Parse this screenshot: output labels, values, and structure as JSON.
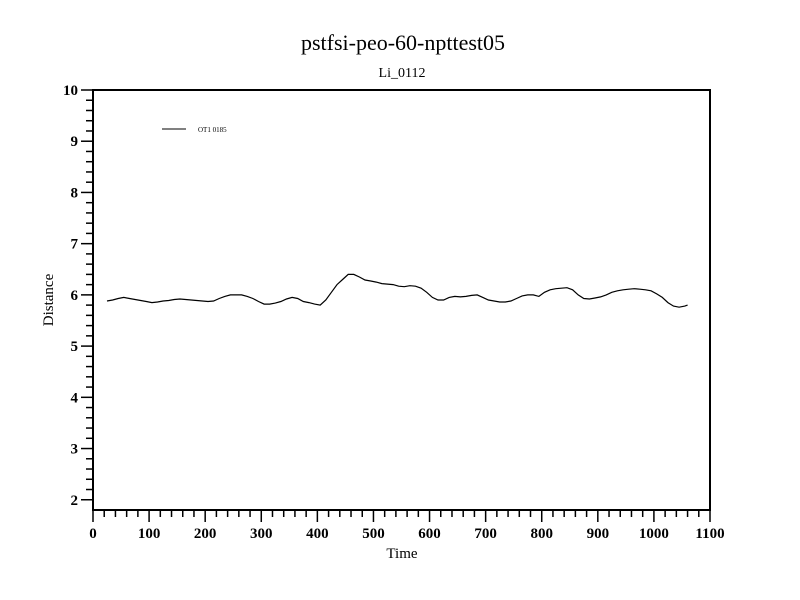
{
  "chart_data": {
    "type": "line",
    "title": "pstfsi-peo-60-npttest05",
    "subtitle": "Li_0112",
    "xlabel": "Time",
    "ylabel": "Distance",
    "xlim": [
      0,
      1100
    ],
    "ylim": [
      1.8,
      10
    ],
    "x_ticks": [
      "0",
      "100",
      "200",
      "300",
      "400",
      "500",
      "600",
      "700",
      "800",
      "900",
      "1000",
      "1100"
    ],
    "y_ticks": [
      "2",
      "3",
      "4",
      "5",
      "6",
      "7",
      "8",
      "9",
      "10"
    ],
    "grid": false,
    "legend_position": "top-left",
    "line_color": "#000000",
    "series": [
      {
        "name": "OT1 0185",
        "x": [
          25,
          35,
          45,
          55,
          65,
          75,
          85,
          95,
          105,
          115,
          125,
          135,
          145,
          155,
          165,
          175,
          185,
          195,
          205,
          215,
          225,
          235,
          245,
          255,
          265,
          275,
          285,
          295,
          305,
          315,
          325,
          335,
          345,
          355,
          365,
          375,
          385,
          395,
          405,
          415,
          425,
          435,
          445,
          455,
          465,
          475,
          485,
          495,
          505,
          515,
          525,
          535,
          545,
          555,
          565,
          575,
          585,
          595,
          605,
          615,
          625,
          635,
          645,
          655,
          665,
          675,
          685,
          695,
          705,
          715,
          725,
          735,
          745,
          755,
          765,
          775,
          785,
          795,
          805,
          815,
          825,
          835,
          845,
          855,
          865,
          875,
          885,
          895,
          905,
          915,
          925,
          935,
          945,
          955,
          965,
          975,
          985,
          995,
          1005,
          1015,
          1025,
          1035,
          1045,
          1055,
          1060
        ],
        "y": [
          5.88,
          5.9,
          5.93,
          5.95,
          5.93,
          5.91,
          5.89,
          5.87,
          5.85,
          5.86,
          5.88,
          5.89,
          5.91,
          5.92,
          5.91,
          5.9,
          5.89,
          5.88,
          5.87,
          5.88,
          5.93,
          5.97,
          6.0,
          6.0,
          6.0,
          5.97,
          5.93,
          5.87,
          5.82,
          5.82,
          5.84,
          5.87,
          5.92,
          5.95,
          5.93,
          5.87,
          5.85,
          5.82,
          5.8,
          5.9,
          6.05,
          6.2,
          6.3,
          6.4,
          6.4,
          6.35,
          6.29,
          6.27,
          6.25,
          6.22,
          6.21,
          6.2,
          6.17,
          6.16,
          6.18,
          6.17,
          6.13,
          6.05,
          5.95,
          5.9,
          5.9,
          5.95,
          5.97,
          5.96,
          5.97,
          5.99,
          6.0,
          5.95,
          5.9,
          5.88,
          5.86,
          5.86,
          5.88,
          5.93,
          5.98,
          6.0,
          6.0,
          5.97,
          6.05,
          6.1,
          6.12,
          6.13,
          6.14,
          6.1,
          6.0,
          5.93,
          5.92,
          5.94,
          5.96,
          6.0,
          6.05,
          6.08,
          6.1,
          6.11,
          6.12,
          6.11,
          6.1,
          6.08,
          6.02,
          5.95,
          5.85,
          5.78,
          5.76,
          5.78,
          5.8
        ]
      }
    ]
  }
}
